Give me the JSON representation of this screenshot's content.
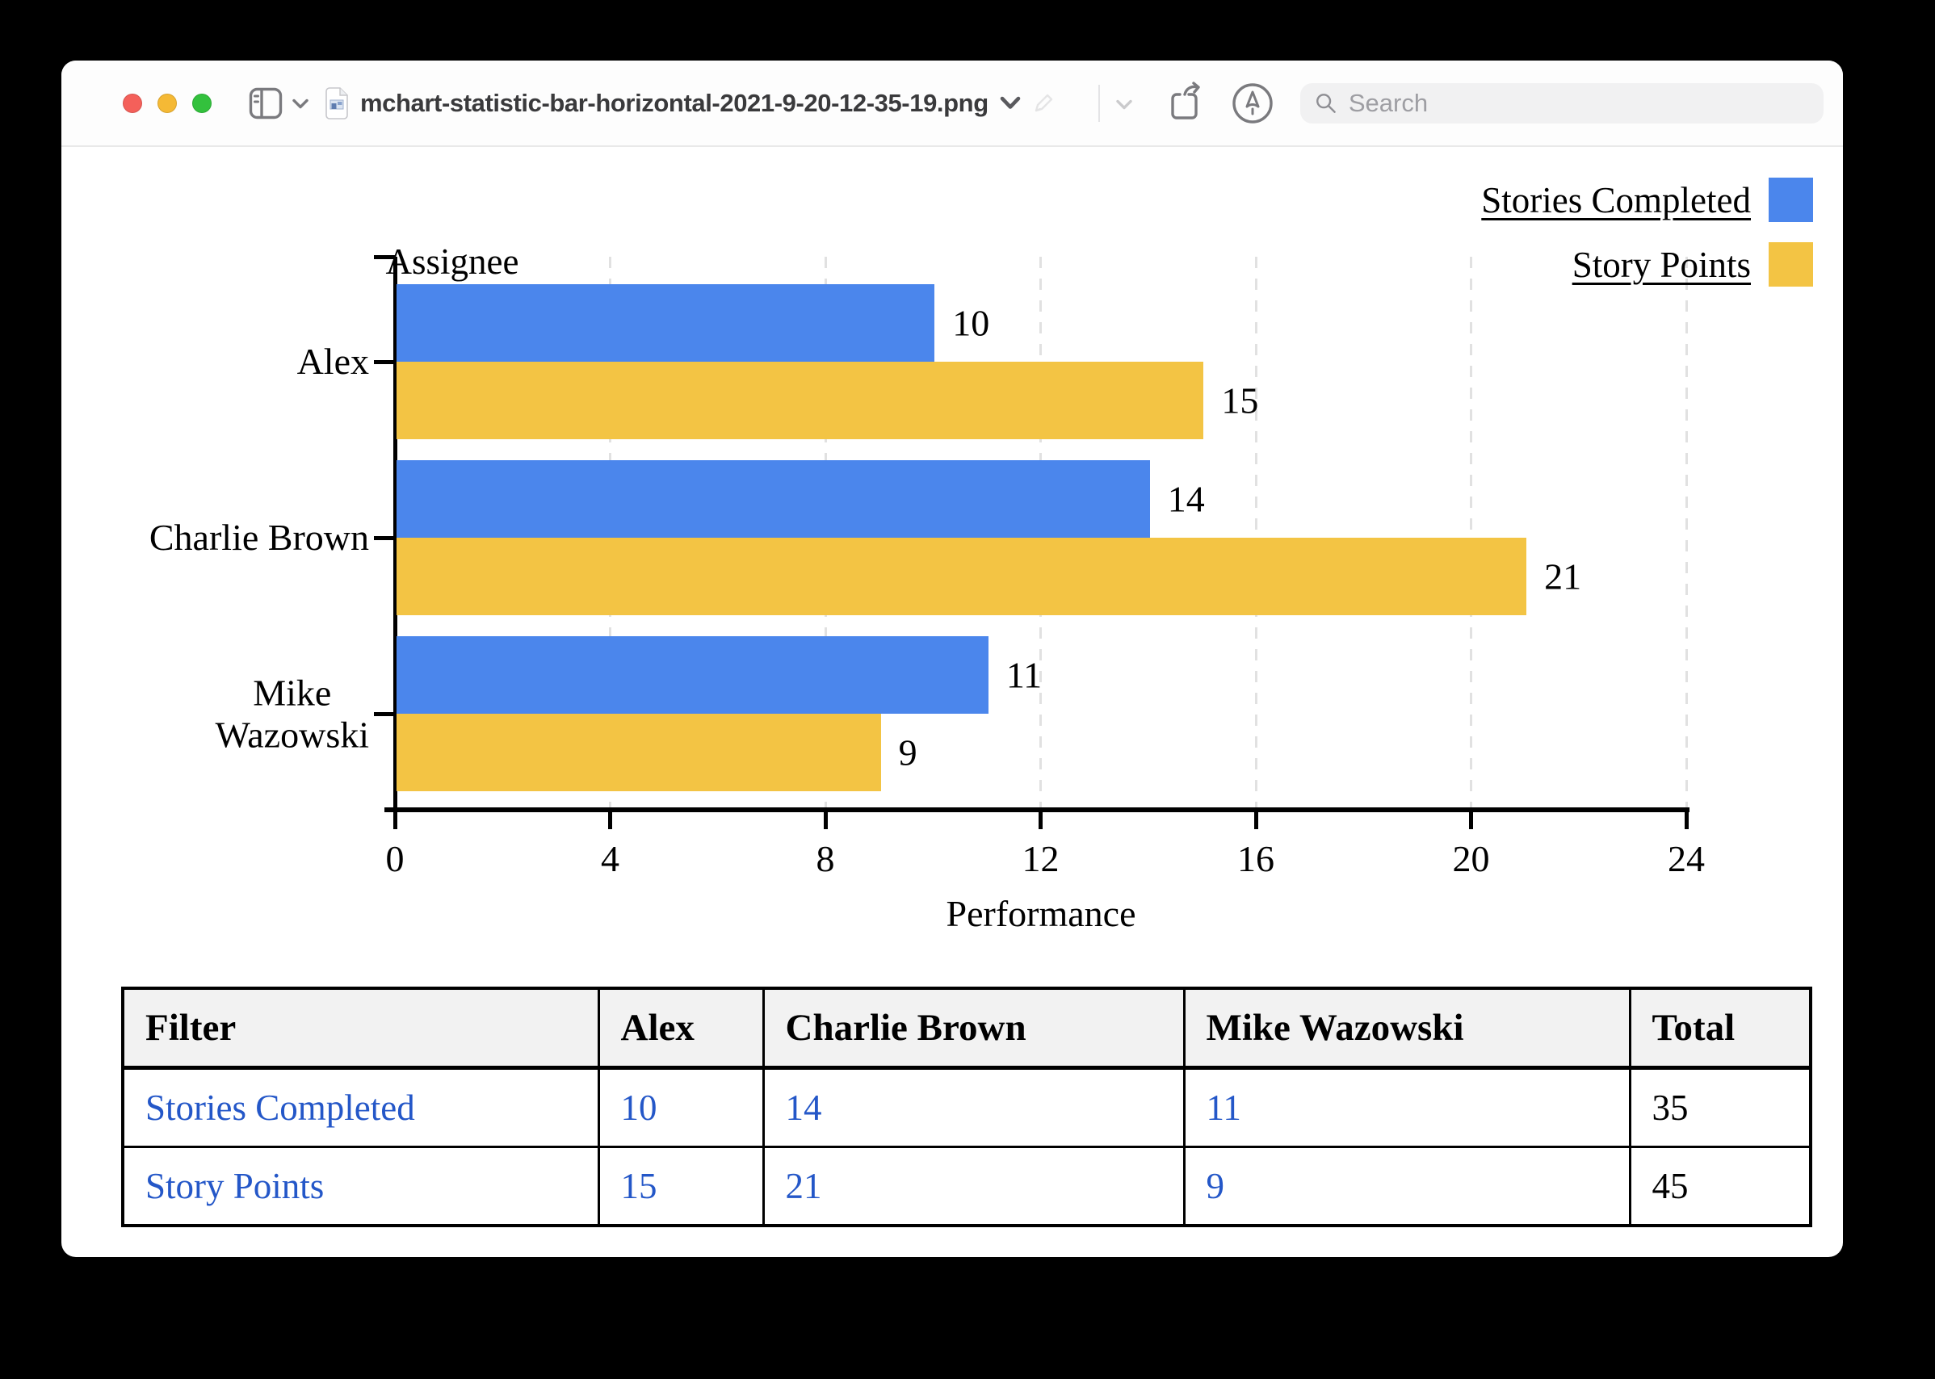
{
  "window": {
    "title_bar": {
      "filename": "mchart-statistic-bar-horizontal-2021-9-20-12-35-19.png",
      "search": {
        "placeholder": "Search",
        "value": ""
      }
    }
  },
  "chart_data": {
    "type": "bar",
    "orientation": "horizontal",
    "title": "Assignee",
    "xlabel": "Performance",
    "categories": [
      "Alex",
      "Charlie Brown",
      "Mike Wazowski"
    ],
    "category_label_lines": [
      [
        "Alex"
      ],
      [
        "Charlie Brown"
      ],
      [
        "Mike",
        "Wazowski"
      ]
    ],
    "series": [
      {
        "name": "Stories Completed",
        "color": "#4b86ec",
        "values": [
          10,
          14,
          11
        ]
      },
      {
        "name": "Story Points",
        "color": "#f3c444",
        "values": [
          15,
          21,
          9
        ]
      }
    ],
    "xlim": [
      0,
      24
    ],
    "xticks": [
      0,
      4,
      8,
      12,
      16,
      20,
      24
    ],
    "grid": true,
    "gridline_color": "#e1e1e1",
    "legend_position": "top-right",
    "bar_value_labels": true
  },
  "table": {
    "headers": [
      "Filter",
      "Alex",
      "Charlie Brown",
      "Mike Wazowski",
      "Total"
    ],
    "rows": [
      [
        "Stories Completed",
        "10",
        "14",
        "11",
        "35"
      ],
      [
        "Story Points",
        "15",
        "21",
        "9",
        "45"
      ]
    ],
    "link_color": "#2457c8"
  }
}
